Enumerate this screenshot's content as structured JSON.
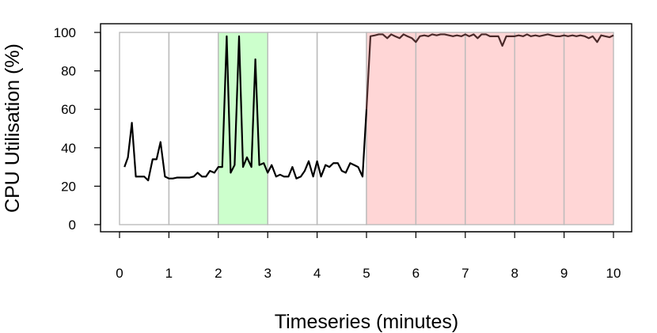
{
  "chart_data": {
    "type": "line",
    "xlabel": "Timeseries (minutes)",
    "ylabel": "CPU Utilisation (%)",
    "xlim": [
      0,
      10
    ],
    "ylim": [
      0,
      100
    ],
    "x_ticks": [
      "0",
      "1",
      "2",
      "3",
      "4",
      "5",
      "6",
      "7",
      "8",
      "9",
      "10"
    ],
    "y_ticks": [
      "0",
      "20",
      "40",
      "60",
      "80",
      "100"
    ],
    "grid": false,
    "legend": "none",
    "colors": {
      "line_normal": "#000000",
      "line_overload": "#4a2a2a",
      "green_fill": "#ccffcc",
      "red_fill": "#ffd6d6",
      "box_stroke": "#bbbbbb"
    },
    "regions": [
      {
        "type": "normal",
        "x_start": 0,
        "x_end": 1
      },
      {
        "type": "normal",
        "x_start": 1,
        "x_end": 2
      },
      {
        "type": "green",
        "x_start": 2,
        "x_end": 3
      },
      {
        "type": "normal",
        "x_start": 3,
        "x_end": 4
      },
      {
        "type": "normal",
        "x_start": 4,
        "x_end": 5
      },
      {
        "type": "red",
        "x_start": 5,
        "x_end": 6
      },
      {
        "type": "red",
        "x_start": 6,
        "x_end": 7
      },
      {
        "type": "red",
        "x_start": 7,
        "x_end": 8
      },
      {
        "type": "red",
        "x_start": 8,
        "x_end": 9
      },
      {
        "type": "red",
        "x_start": 9,
        "x_end": 10
      }
    ],
    "series": [
      {
        "x": [
          0.1,
          0.17,
          0.25,
          0.33,
          0.42,
          0.5,
          0.58,
          0.67,
          0.75,
          0.83,
          0.92,
          1.0,
          1.08,
          1.17,
          1.25,
          1.33,
          1.42,
          1.5,
          1.58,
          1.67,
          1.75,
          1.83,
          1.92,
          2.0,
          2.08,
          2.17,
          2.25,
          2.33,
          2.42,
          2.5,
          2.58,
          2.67,
          2.75,
          2.83,
          2.92,
          3.0,
          3.08,
          3.17,
          3.25,
          3.33,
          3.42,
          3.5,
          3.58,
          3.67,
          3.75,
          3.83,
          3.92,
          4.0,
          4.08,
          4.17,
          4.25,
          4.33,
          4.42,
          4.5,
          4.58,
          4.67,
          4.75,
          4.83,
          4.92,
          5.0,
          5.08,
          5.17,
          5.25,
          5.33,
          5.42,
          5.5,
          5.58,
          5.67,
          5.75,
          5.83,
          5.92,
          6.0,
          6.08,
          6.17,
          6.25,
          6.33,
          6.42,
          6.5,
          6.58,
          6.67,
          6.75,
          6.83,
          6.92,
          7.0,
          7.08,
          7.17,
          7.25,
          7.33,
          7.42,
          7.5,
          7.58,
          7.67,
          7.75,
          7.83,
          7.92,
          8.0,
          8.08,
          8.17,
          8.25,
          8.33,
          8.42,
          8.5,
          8.58,
          8.67,
          8.75,
          8.83,
          8.92,
          9.0,
          9.08,
          9.17,
          9.25,
          9.33,
          9.42,
          9.5,
          9.58,
          9.67,
          9.75,
          9.83,
          9.92,
          10.0
        ],
        "values": [
          30,
          35,
          53,
          25,
          25,
          25,
          23,
          34,
          34,
          43,
          25,
          24,
          24,
          24.5,
          24.5,
          24.5,
          24.5,
          25,
          27,
          25,
          25,
          28,
          27,
          30,
          30,
          98,
          27,
          31,
          98,
          30,
          35,
          30,
          86,
          31,
          32,
          27,
          31,
          25,
          26,
          25,
          25,
          30,
          24,
          25,
          28,
          33,
          25,
          33,
          25,
          31,
          30,
          32,
          32,
          28,
          27,
          32,
          31,
          30,
          25,
          60,
          98,
          98.5,
          99,
          99,
          97,
          99,
          98,
          97,
          99,
          98,
          97,
          95,
          98,
          98.5,
          98,
          99,
          98.5,
          99,
          99,
          98.5,
          98,
          98.5,
          98,
          99,
          98,
          99,
          97,
          99,
          99,
          98,
          98,
          98,
          93,
          98,
          98,
          98,
          98.5,
          98,
          99,
          98,
          98.5,
          98,
          98.5,
          99,
          98.5,
          98,
          98,
          98.5,
          98,
          98.5,
          98,
          98.5,
          98,
          97,
          98,
          95,
          98.5,
          98,
          97.5,
          98.5
        ]
      }
    ]
  }
}
